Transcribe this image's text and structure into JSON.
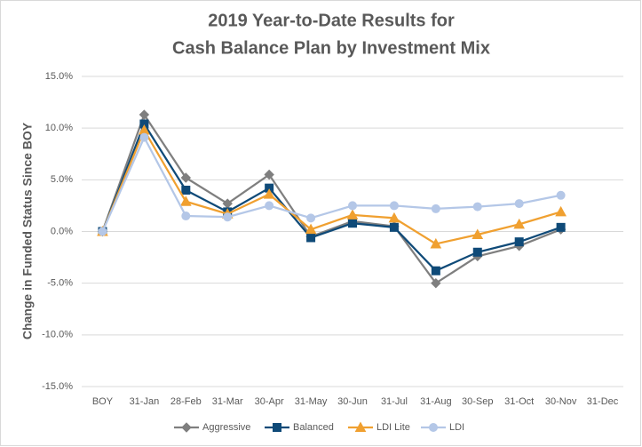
{
  "chart_data": {
    "type": "line",
    "title": [
      "2019 Year-to-Date Results for",
      "Cash Balance Plan by Investment Mix"
    ],
    "y_label": "Change in Funded Status Since BOY",
    "categories": [
      "BOY",
      "31-Jan",
      "28-Feb",
      "31-Mar",
      "30-Apr",
      "31-May",
      "30-Jun",
      "31-Jul",
      "31-Aug",
      "30-Sep",
      "31-Oct",
      "30-Nov",
      "31-Dec"
    ],
    "series": [
      {
        "name": "Aggressive",
        "color": "#7f7f7f",
        "marker": "diamond",
        "values": [
          0,
          11.3,
          5.2,
          2.7,
          5.5,
          -0.5,
          1.0,
          0.5,
          -5.0,
          -2.4,
          -1.4,
          0.2,
          null
        ]
      },
      {
        "name": "Balanced",
        "color": "#0f4a78",
        "marker": "square",
        "values": [
          0,
          10.4,
          4.0,
          1.9,
          4.2,
          -0.6,
          0.8,
          0.4,
          -3.8,
          -2.0,
          -1.0,
          0.4,
          null
        ]
      },
      {
        "name": "LDI Lite",
        "color": "#f0a030",
        "marker": "triangle",
        "values": [
          0,
          9.8,
          2.9,
          1.7,
          3.6,
          0.2,
          1.6,
          1.3,
          -1.2,
          -0.3,
          0.7,
          1.9,
          null
        ]
      },
      {
        "name": "LDI",
        "color": "#b4c7e7",
        "marker": "circle",
        "values": [
          0,
          9.1,
          1.5,
          1.4,
          2.5,
          1.3,
          2.5,
          2.5,
          2.2,
          2.4,
          2.7,
          3.5,
          null
        ]
      }
    ],
    "ylim": [
      -15,
      15
    ],
    "yticks": [
      {
        "value": -15,
        "label": "-15.0%"
      },
      {
        "value": -10,
        "label": "-10.0%"
      },
      {
        "value": -5,
        "label": "-5.0%"
      },
      {
        "value": 0,
        "label": "0.0%"
      },
      {
        "value": 5,
        "label": "5.0%"
      },
      {
        "value": 10,
        "label": "10.0%"
      },
      {
        "value": 15,
        "label": "15.0%"
      }
    ],
    "grid": true,
    "legend": "bottom"
  }
}
